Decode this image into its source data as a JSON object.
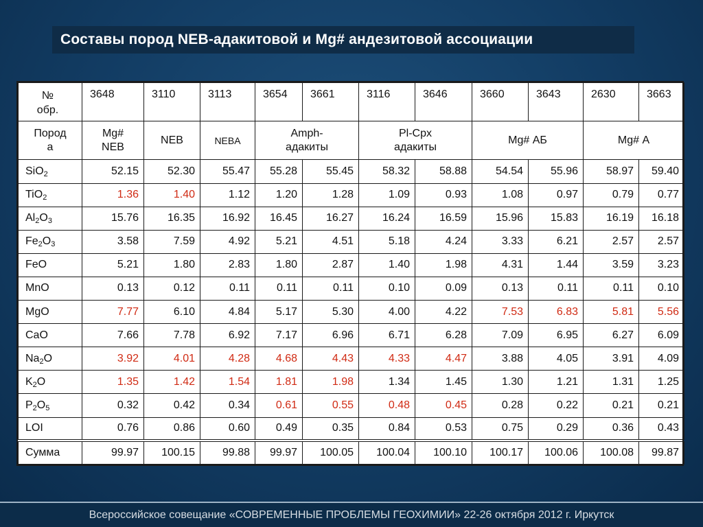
{
  "slide": {
    "title": "Составы пород NEB-адакитовой и Mg# андезитовой ассоциации",
    "footer": "Всероссийское совещание «СОВРЕМЕННЫЕ ПРОБЛЕМЫ ГЕОХИМИИ» 22-26 октября 2012 г. Иркутск"
  },
  "table": {
    "sample_header": "№ обр.",
    "sample_header_line1": "№",
    "sample_header_line2": "обр.",
    "samples": [
      "3648",
      "3110",
      "3113",
      "3654",
      "3661",
      "3116",
      "3646",
      "3660",
      "3643",
      "2630",
      "3663"
    ],
    "rock_header_line1": "Пород",
    "rock_header_line2": "а",
    "rock_groups": [
      {
        "line1": "Mg#",
        "line2": "NEB"
      },
      {
        "line1": "NEB",
        "line2": ""
      },
      {
        "line1": "NEBA",
        "line2": ""
      },
      {
        "line1": "Amph-",
        "line2": "адакиты"
      },
      {
        "line1": "Pl-Cpx",
        "line2": "адакиты"
      },
      {
        "line1": "Mg# АБ",
        "line2": ""
      },
      {
        "line1": "Mg# А",
        "line2": ""
      }
    ],
    "rows": [
      {
        "el": "SiO",
        "sub1": "2",
        "el2": "",
        "sub2": "",
        "values": [
          "52.15",
          "52.30",
          "55.47",
          "55.28",
          "55.45",
          "58.32",
          "58.88",
          "54.54",
          "55.96",
          "58.97",
          "59.40"
        ]
      },
      {
        "el": "TiO",
        "sub1": "2",
        "el2": "",
        "sub2": "",
        "values": [
          "1.36",
          "1.40",
          "1.12",
          "1.20",
          "1.28",
          "1.09",
          "0.93",
          "1.08",
          "0.97",
          "0.79",
          "0.77"
        ]
      },
      {
        "el": "Al",
        "sub1": "2",
        "el2": "O",
        "sub2": "3",
        "values": [
          "15.76",
          "16.35",
          "16.92",
          "16.45",
          "16.27",
          "16.24",
          "16.59",
          "15.96",
          "15.83",
          "16.19",
          "16.18"
        ]
      },
      {
        "el": "Fe",
        "sub1": "2",
        "el2": "O",
        "sub2": "3",
        "values": [
          "3.58",
          "7.59",
          "4.92",
          "5.21",
          "4.51",
          "5.18",
          "4.24",
          "3.33",
          "6.21",
          "2.57",
          "2.57"
        ]
      },
      {
        "el": "FeO",
        "sub1": "",
        "el2": "",
        "sub2": "",
        "values": [
          "5.21",
          "1.80",
          "2.83",
          "1.80",
          "2.87",
          "1.40",
          "1.98",
          "4.31",
          "1.44",
          "3.59",
          "3.23"
        ]
      },
      {
        "el": "MnO",
        "sub1": "",
        "el2": "",
        "sub2": "",
        "values": [
          "0.13",
          "0.12",
          "0.11",
          "0.11",
          "0.11",
          "0.10",
          "0.09",
          "0.13",
          "0.11",
          "0.11",
          "0.10"
        ]
      },
      {
        "el": "MgO",
        "sub1": "",
        "el2": "",
        "sub2": "",
        "values": [
          "7.77",
          "6.10",
          "4.84",
          "5.17",
          "5.30",
          "4.00",
          "4.22",
          "7.53",
          "6.83",
          "5.81",
          "5.56"
        ]
      },
      {
        "el": "CaO",
        "sub1": "",
        "el2": "",
        "sub2": "",
        "values": [
          "7.66",
          "7.78",
          "6.92",
          "7.17",
          "6.96",
          "6.71",
          "6.28",
          "7.09",
          "6.95",
          "6.27",
          "6.09"
        ]
      },
      {
        "el": "Na",
        "sub1": "2",
        "el2": "O",
        "sub2": "",
        "values": [
          "3.92",
          "4.01",
          "4.28",
          "4.68",
          "4.43",
          "4.33",
          "4.47",
          "3.88",
          "4.05",
          "3.91",
          "4.09"
        ]
      },
      {
        "el": "K",
        "sub1": "2",
        "el2": "O",
        "sub2": "",
        "values": [
          "1.35",
          "1.42",
          "1.54",
          "1.81",
          "1.98",
          "1.34",
          "1.45",
          "1.30",
          "1.21",
          "1.31",
          "1.25"
        ]
      },
      {
        "el": "P",
        "sub1": "2",
        "el2": "O",
        "sub2": "5",
        "values": [
          "0.32",
          "0.42",
          "0.34",
          "0.61",
          "0.55",
          "0.48",
          "0.45",
          "0.28",
          "0.22",
          "0.21",
          "0.21"
        ]
      },
      {
        "el": "LOI",
        "sub1": "",
        "el2": "",
        "sub2": "",
        "values": [
          "0.76",
          "0.86",
          "0.60",
          "0.49",
          "0.35",
          "0.84",
          "0.53",
          "0.75",
          "0.29",
          "0.36",
          "0.43"
        ]
      }
    ],
    "sum_row": {
      "label": "Сумма",
      "values": [
        "99.97",
        "100.15",
        "99.88",
        "99.97",
        "100.05",
        "100.04",
        "100.10",
        "100.17",
        "100.06",
        "100.08",
        "99.87"
      ]
    },
    "highlighted_cells": {
      "TiO2": [
        0,
        1
      ],
      "MgO": [
        0,
        7,
        8,
        9,
        10
      ],
      "Na2O": [
        0,
        1,
        2,
        3,
        4,
        5,
        6
      ],
      "K2O": [
        0,
        1,
        2,
        3,
        4
      ],
      "P2O5": [
        3,
        4,
        5,
        6
      ]
    },
    "highlight_color": "#d02a13"
  }
}
